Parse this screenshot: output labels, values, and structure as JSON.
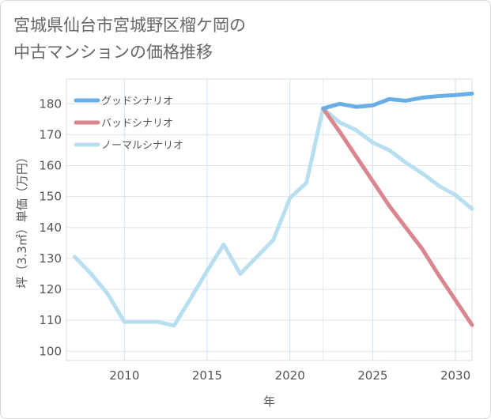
{
  "title_lines": [
    "宮城県仙台市宮城野区榴ケ岡の",
    "中古マンションの価格推移"
  ],
  "chart_data": {
    "type": "line",
    "title": "宮城県仙台市宮城野区榴ケ岡の中古マンションの価格推移",
    "xlabel": "年",
    "ylabel": "坪（3.3㎡）単価（万円）",
    "xlim": [
      2006.5,
      2031
    ],
    "ylim": [
      97,
      188
    ],
    "xticks": [
      2010,
      2015,
      2020,
      2025,
      2030
    ],
    "yticks": [
      100,
      110,
      120,
      130,
      140,
      150,
      160,
      170,
      180
    ],
    "series": [
      {
        "name": "グッドシナリオ",
        "color": "#6aaee8",
        "x": [
          2022,
          2023,
          2024,
          2025,
          2026,
          2027,
          2028,
          2029,
          2030,
          2031
        ],
        "y": [
          178.5,
          180,
          179,
          179.5,
          181.5,
          181,
          182,
          182.5,
          182.8,
          183.3
        ]
      },
      {
        "name": "バッドシナリオ",
        "color": "#d9868e",
        "x": [
          2022,
          2023,
          2024,
          2025,
          2026,
          2027,
          2028,
          2029,
          2030,
          2031
        ],
        "y": [
          178.5,
          171,
          163,
          155,
          147,
          140,
          133,
          124.5,
          116.5,
          108.5
        ]
      },
      {
        "name": "ノーマルシナリオ",
        "color": "#b7dff0",
        "x": [
          2007,
          2008,
          2009,
          2010,
          2011,
          2012,
          2013,
          2014,
          2015,
          2016,
          2017,
          2018,
          2019,
          2020,
          2021,
          2022,
          2023,
          2024,
          2025,
          2026,
          2027,
          2028,
          2029,
          2030,
          2031
        ],
        "y": [
          130.5,
          125,
          118.5,
          109.5,
          109.5,
          109.5,
          108.3,
          117,
          126,
          134.5,
          125,
          130.5,
          136,
          149.5,
          154.5,
          178.5,
          174,
          171.5,
          167.5,
          165,
          161,
          157.5,
          153.5,
          150.5,
          146
        ]
      }
    ],
    "legend_position": "top-left"
  }
}
